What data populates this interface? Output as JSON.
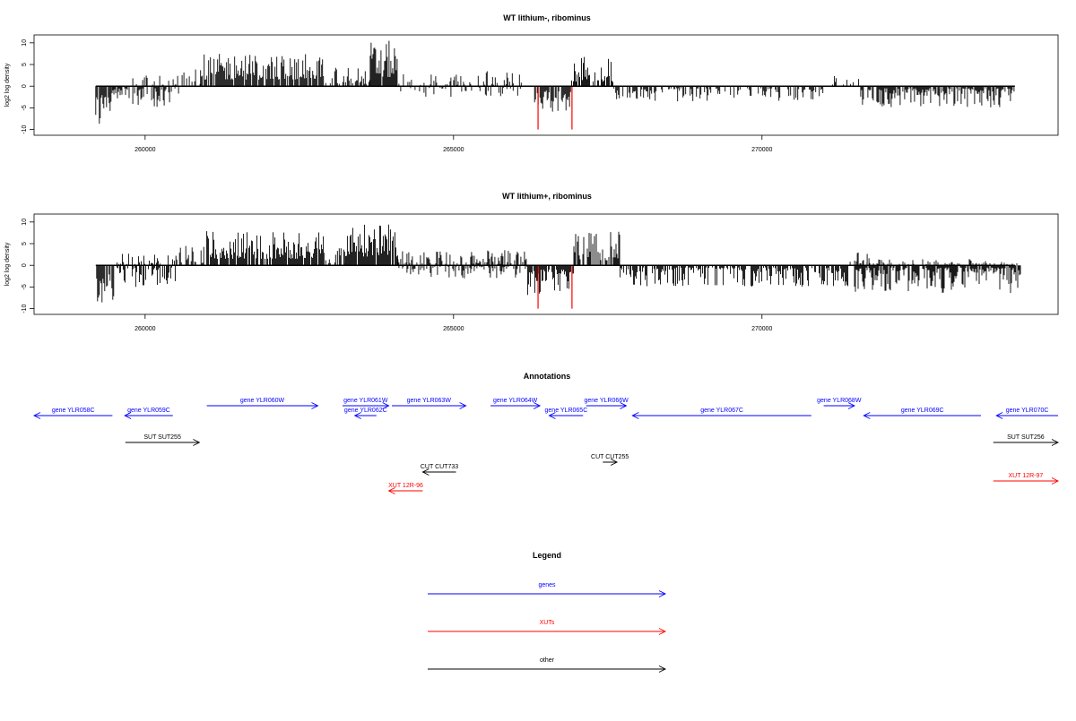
{
  "chart_data": [
    {
      "type": "bar",
      "title": "WT lithium-, ribominus",
      "ylabel": "log2 log density",
      "xlim": [
        258200,
        274800
      ],
      "ylim": [
        -10.5,
        11
      ],
      "xticks": [
        260000,
        265000,
        270000
      ],
      "yticks": [
        10,
        5,
        0,
        -5,
        -10
      ],
      "segments": [
        {
          "x0": 259200,
          "x1": 259450,
          "side": "neg",
          "lo": 2,
          "hi": 9,
          "density": 0.9
        },
        {
          "x0": 259450,
          "x1": 259750,
          "side": "neg",
          "lo": 0.5,
          "hi": 3,
          "density": 0.7
        },
        {
          "x0": 259800,
          "x1": 260550,
          "side": "neg",
          "lo": 0.5,
          "hi": 5,
          "density": 0.55
        },
        {
          "x0": 259800,
          "x1": 260550,
          "side": "pos",
          "lo": 0.3,
          "hi": 2.5,
          "density": 0.35
        },
        {
          "x0": 260600,
          "x1": 260900,
          "side": "pos",
          "lo": 0.5,
          "hi": 4,
          "density": 0.4
        },
        {
          "x0": 260900,
          "x1": 262900,
          "side": "pos",
          "lo": 1.5,
          "hi": 7.5,
          "density": 0.9
        },
        {
          "x0": 262900,
          "x1": 263650,
          "side": "pos",
          "lo": 0.5,
          "hi": 4.5,
          "density": 0.5
        },
        {
          "x0": 263650,
          "x1": 264100,
          "side": "pos",
          "lo": 2,
          "hi": 10.5,
          "density": 0.9
        },
        {
          "x0": 264100,
          "x1": 265300,
          "side": "pos",
          "lo": 0.3,
          "hi": 3,
          "density": 0.3
        },
        {
          "x0": 264100,
          "x1": 265300,
          "side": "neg",
          "lo": 0.3,
          "hi": 2.5,
          "density": 0.2
        },
        {
          "x0": 265400,
          "x1": 266100,
          "side": "pos",
          "lo": 0.3,
          "hi": 3.5,
          "density": 0.35
        },
        {
          "x0": 265400,
          "x1": 266100,
          "side": "neg",
          "lo": 0.3,
          "hi": 2.5,
          "density": 0.25
        },
        {
          "x0": 266300,
          "x1": 266900,
          "side": "neg",
          "lo": 1,
          "hi": 6,
          "density": 0.85
        },
        {
          "x0": 266900,
          "x1": 267600,
          "side": "pos",
          "lo": 1,
          "hi": 7,
          "density": 0.7
        },
        {
          "x0": 267600,
          "x1": 271000,
          "side": "neg",
          "lo": 0.5,
          "hi": 3.5,
          "density": 0.45
        },
        {
          "x0": 271000,
          "x1": 271600,
          "side": "pos",
          "lo": 0.3,
          "hi": 2.5,
          "density": 0.2
        },
        {
          "x0": 271600,
          "x1": 274100,
          "side": "neg",
          "lo": 0.5,
          "hi": 5,
          "density": 0.75
        }
      ],
      "highlights": [
        {
          "x": 266370,
          "value": -10,
          "color": "#ff0000"
        },
        {
          "x": 266920,
          "value": -10,
          "color": "#ff0000"
        }
      ]
    },
    {
      "type": "bar",
      "title": "WT lithium+, ribominus",
      "ylabel": "log2 log density",
      "xlim": [
        258200,
        274800
      ],
      "ylim": [
        -10.5,
        11
      ],
      "xticks": [
        260000,
        265000,
        270000
      ],
      "yticks": [
        10,
        5,
        0,
        -5,
        -10
      ],
      "segments": [
        {
          "x0": 259200,
          "x1": 259500,
          "side": "neg",
          "lo": 2,
          "hi": 10,
          "density": 0.9
        },
        {
          "x0": 259500,
          "x1": 260500,
          "side": "neg",
          "lo": 0.5,
          "hi": 5,
          "density": 0.6
        },
        {
          "x0": 259500,
          "x1": 260500,
          "side": "pos",
          "lo": 0.3,
          "hi": 3,
          "density": 0.4
        },
        {
          "x0": 260500,
          "x1": 261000,
          "side": "pos",
          "lo": 0.5,
          "hi": 4.5,
          "density": 0.5
        },
        {
          "x0": 261000,
          "x1": 262900,
          "side": "pos",
          "lo": 1.5,
          "hi": 8,
          "density": 0.9
        },
        {
          "x0": 262900,
          "x1": 263250,
          "side": "pos",
          "lo": 0.5,
          "hi": 4,
          "density": 0.5
        },
        {
          "x0": 263250,
          "x1": 264100,
          "side": "pos",
          "lo": 2,
          "hi": 9.5,
          "density": 0.9
        },
        {
          "x0": 264100,
          "x1": 266200,
          "side": "pos",
          "lo": 0.3,
          "hi": 3.5,
          "density": 0.5
        },
        {
          "x0": 264100,
          "x1": 266200,
          "side": "neg",
          "lo": 0.3,
          "hi": 3,
          "density": 0.4
        },
        {
          "x0": 266200,
          "x1": 266950,
          "side": "neg",
          "lo": 1,
          "hi": 7,
          "density": 0.85
        },
        {
          "x0": 266950,
          "x1": 267700,
          "side": "pos",
          "lo": 1,
          "hi": 8,
          "density": 0.8
        },
        {
          "x0": 267700,
          "x1": 271400,
          "side": "neg",
          "lo": 0.5,
          "hi": 5,
          "density": 0.7
        },
        {
          "x0": 271400,
          "x1": 272000,
          "side": "pos",
          "lo": 0.3,
          "hi": 3,
          "density": 0.2
        },
        {
          "x0": 271500,
          "x1": 274200,
          "side": "neg",
          "lo": 0.5,
          "hi": 6.5,
          "density": 0.85
        },
        {
          "x0": 271500,
          "x1": 274200,
          "side": "pos",
          "lo": 0.3,
          "hi": 1.5,
          "density": 0.25
        }
      ],
      "highlights": [
        {
          "x": 266370,
          "value": -10,
          "color": "#ff0000"
        },
        {
          "x": 266920,
          "value": -10,
          "color": "#ff0000"
        }
      ]
    },
    {
      "type": "diagram",
      "title": "Annotations",
      "xlim": [
        258200,
        274800
      ],
      "features": [
        {
          "label": "gene YLR058C",
          "start": 258200,
          "end": 259470,
          "strand": "-",
          "color": "#0000ff",
          "row": 1
        },
        {
          "label": "gene YLR059C",
          "start": 259670,
          "end": 260450,
          "strand": "-",
          "color": "#0000ff",
          "row": 1
        },
        {
          "label": "gene YLR060W",
          "start": 261000,
          "end": 262800,
          "strand": "+",
          "color": "#0000ff",
          "row": 0
        },
        {
          "label": "gene YLR061W",
          "start": 263200,
          "end": 263950,
          "strand": "+",
          "color": "#0000ff",
          "row": 0
        },
        {
          "label": "gene YLR062C",
          "start": 263400,
          "end": 263750,
          "strand": "-",
          "color": "#0000ff",
          "row": 1
        },
        {
          "label": "gene YLR063W",
          "start": 264000,
          "end": 265200,
          "strand": "+",
          "color": "#0000ff",
          "row": 0
        },
        {
          "label": "gene YLR064W",
          "start": 265600,
          "end": 266400,
          "strand": "+",
          "color": "#0000ff",
          "row": 0
        },
        {
          "label": "gene YLR065C",
          "start": 266550,
          "end": 267100,
          "strand": "-",
          "color": "#0000ff",
          "row": 1
        },
        {
          "label": "gene YLR066W",
          "start": 267150,
          "end": 267800,
          "strand": "+",
          "color": "#0000ff",
          "row": 0
        },
        {
          "label": "gene YLR067C",
          "start": 267900,
          "end": 270800,
          "strand": "-",
          "color": "#0000ff",
          "row": 1
        },
        {
          "label": "gene YLR068W",
          "start": 271000,
          "end": 271500,
          "strand": "+",
          "color": "#0000ff",
          "row": 0
        },
        {
          "label": "gene YLR069C",
          "start": 271650,
          "end": 273550,
          "strand": "-",
          "color": "#0000ff",
          "row": 1
        },
        {
          "label": "gene YLR070C",
          "start": 273800,
          "end": 274800,
          "strand": "-",
          "color": "#0000ff",
          "row": 1
        },
        {
          "label": "SUT SUT255",
          "start": 259680,
          "end": 260880,
          "strand": "+",
          "color": "#000000",
          "row": 3
        },
        {
          "label": "SUT SUT256",
          "start": 273750,
          "end": 274800,
          "strand": "+",
          "color": "#000000",
          "row": 3
        },
        {
          "label": "CUT CUT733",
          "start": 264500,
          "end": 265040,
          "strand": "-",
          "color": "#000000",
          "row": 5
        },
        {
          "label": "CUT CUT255",
          "start": 267420,
          "end": 267650,
          "strand": "+",
          "color": "#000000",
          "row": 4
        },
        {
          "label": "XUT 12R-96",
          "start": 263950,
          "end": 264500,
          "strand": "-",
          "color": "#ff0000",
          "row": 6
        },
        {
          "label": "XUT 12R-97",
          "start": 273750,
          "end": 274800,
          "strand": "+",
          "color": "#ff0000",
          "row": 7
        }
      ]
    }
  ],
  "legend": {
    "title": "Legend",
    "items": [
      {
        "label": "genes",
        "color": "#0000ff"
      },
      {
        "label": "XUTs",
        "color": "#ff0000"
      },
      {
        "label": "other",
        "color": "#000000"
      }
    ]
  }
}
